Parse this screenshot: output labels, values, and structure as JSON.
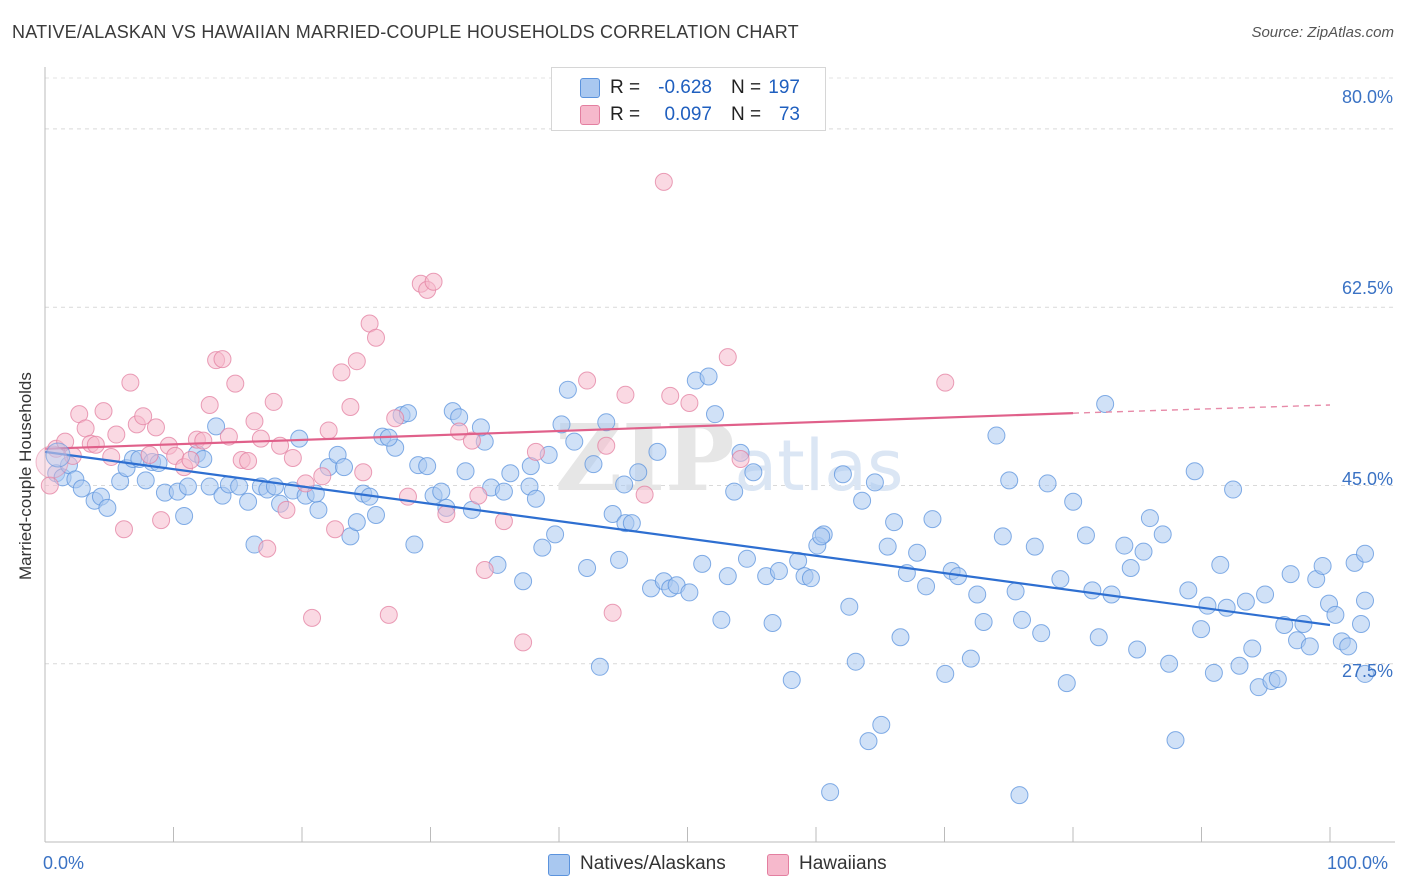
{
  "title": "NATIVE/ALASKAN VS HAWAIIAN MARRIED-COUPLE HOUSEHOLDS CORRELATION CHART",
  "source": "Source: ZipAtlas.com",
  "watermark": "ZIPatlas",
  "legend_top": {
    "rows": [
      {
        "r_label": "R =",
        "r_value": "-0.628",
        "n_label": "N =",
        "n_value": "197",
        "color": "#a9c8f0"
      },
      {
        "r_label": "R =",
        "r_value": "0.097",
        "n_label": "N =",
        "n_value": "73",
        "color": "#f6b9cc"
      }
    ]
  },
  "chart_data": {
    "type": "scatter",
    "title": "NATIVE/ALASKAN VS HAWAIIAN MARRIED-COUPLE HOUSEHOLDS CORRELATION CHART",
    "xlabel": "",
    "ylabel": "Married-couple Households",
    "xlim": [
      0,
      100
    ],
    "ylim": [
      10,
      85
    ],
    "x_tick_labels": [
      "0.0%",
      "100.0%"
    ],
    "y_ticks": [
      27.5,
      45.0,
      62.5,
      80.0
    ],
    "y_tick_labels": [
      "27.5%",
      "45.0%",
      "62.5%",
      "80.0%"
    ],
    "grid": true,
    "legend_position": "bottom",
    "series": [
      {
        "name": "Natives/Alaskans",
        "color": "#5b93dd",
        "fill": "#a9c8f0",
        "trend": {
          "x0": 0,
          "y0": 48.3,
          "x1": 100,
          "y1": 31.3
        },
        "points": [
          [
            0.5,
            46.2
          ],
          [
            1,
            45.8
          ],
          [
            1.5,
            47
          ],
          [
            2,
            45.6
          ],
          [
            2.5,
            44.7
          ],
          [
            3.5,
            43.5
          ],
          [
            4,
            43.9
          ],
          [
            4.5,
            42.8
          ],
          [
            5.5,
            45.4
          ],
          [
            6,
            46.7
          ],
          [
            6.5,
            47.6
          ],
          [
            7,
            47.6
          ],
          [
            7.5,
            45.5
          ],
          [
            8,
            47.3
          ],
          [
            8.5,
            47.2
          ],
          [
            9,
            44.3
          ],
          [
            10,
            44.4
          ],
          [
            10.5,
            42
          ],
          [
            10.8,
            44.9
          ],
          [
            11.5,
            48.1
          ],
          [
            12,
            47.6
          ],
          [
            12.5,
            44.9
          ],
          [
            13,
            50.8
          ],
          [
            13.5,
            44
          ],
          [
            14,
            45.1
          ],
          [
            14.8,
            44.9
          ],
          [
            15.5,
            43.4
          ],
          [
            16,
            39.2
          ],
          [
            16.5,
            44.9
          ],
          [
            17,
            44.6
          ],
          [
            17.6,
            44.9
          ],
          [
            18,
            43.2
          ],
          [
            19,
            44.5
          ],
          [
            19.5,
            49.6
          ],
          [
            20,
            44
          ],
          [
            21,
            42.6
          ],
          [
            21.8,
            46.8
          ],
          [
            22.5,
            48
          ],
          [
            23,
            46.8
          ],
          [
            23.5,
            40
          ],
          [
            24,
            41.4
          ],
          [
            24.5,
            44.2
          ],
          [
            25,
            43.9
          ],
          [
            25.5,
            42.1
          ],
          [
            26,
            49.8
          ],
          [
            27,
            48.7
          ],
          [
            27.5,
            51.9
          ],
          [
            28,
            52.1
          ],
          [
            28.5,
            39.2
          ],
          [
            28.8,
            47
          ],
          [
            29.5,
            46.9
          ],
          [
            30,
            44
          ],
          [
            30.6,
            44.4
          ],
          [
            31,
            42.8
          ],
          [
            31.5,
            52.3
          ],
          [
            32,
            51.7
          ],
          [
            32.5,
            46.4
          ],
          [
            33,
            42.6
          ],
          [
            34,
            49.3
          ],
          [
            34.5,
            44.8
          ],
          [
            35,
            37.2
          ],
          [
            35.5,
            44.4
          ],
          [
            36,
            46.2
          ],
          [
            37,
            35.6
          ],
          [
            37.5,
            44.9
          ],
          [
            38,
            43.7
          ],
          [
            38.5,
            38.9
          ],
          [
            39,
            48
          ],
          [
            39.5,
            40.2
          ],
          [
            40,
            51
          ],
          [
            40.5,
            54.4
          ],
          [
            41,
            49.3
          ],
          [
            42,
            36.9
          ],
          [
            42.5,
            47.1
          ],
          [
            43,
            27.2
          ],
          [
            43.5,
            51.2
          ],
          [
            44,
            42.2
          ],
          [
            44.5,
            37.7
          ],
          [
            45,
            41.3
          ],
          [
            45.5,
            41.3
          ],
          [
            46,
            46.3
          ],
          [
            47,
            34.9
          ],
          [
            47.5,
            48.3
          ],
          [
            48,
            35.6
          ],
          [
            48.5,
            34.9
          ],
          [
            49,
            35.2
          ],
          [
            50,
            34.5
          ],
          [
            50.5,
            55.3
          ],
          [
            51,
            37.3
          ],
          [
            51.5,
            55.7
          ],
          [
            52,
            52
          ],
          [
            52.5,
            31.8
          ],
          [
            53,
            36.1
          ],
          [
            53.5,
            44.4
          ],
          [
            54,
            48.2
          ],
          [
            54.5,
            37.8
          ],
          [
            55,
            46.3
          ],
          [
            56,
            36.1
          ],
          [
            56.5,
            31.5
          ],
          [
            57,
            36.6
          ],
          [
            58,
            25.9
          ],
          [
            58.5,
            37.6
          ],
          [
            59,
            36.1
          ],
          [
            59.5,
            35.9
          ],
          [
            60,
            39.1
          ],
          [
            60.5,
            40.2
          ],
          [
            61,
            14.9
          ],
          [
            62,
            46.1
          ],
          [
            62.5,
            33.1
          ],
          [
            63,
            27.7
          ],
          [
            63.5,
            43.5
          ],
          [
            64,
            19.9
          ],
          [
            64.5,
            45.3
          ],
          [
            65,
            21.5
          ],
          [
            65.5,
            39
          ],
          [
            66,
            41.4
          ],
          [
            66.5,
            30.1
          ],
          [
            67,
            36.4
          ],
          [
            67.8,
            38.4
          ],
          [
            68.5,
            35.1
          ],
          [
            69,
            41.7
          ],
          [
            70,
            26.5
          ],
          [
            70.5,
            36.6
          ],
          [
            71,
            36.1
          ],
          [
            72,
            28
          ],
          [
            72.5,
            34.3
          ],
          [
            73,
            31.6
          ],
          [
            74,
            49.9
          ],
          [
            74.5,
            40
          ],
          [
            75,
            45.5
          ],
          [
            75.5,
            34.6
          ],
          [
            76,
            31.8
          ],
          [
            77,
            39
          ],
          [
            77.5,
            30.5
          ],
          [
            78,
            45.2
          ],
          [
            79,
            35.8
          ],
          [
            79.5,
            25.6
          ],
          [
            80,
            43.4
          ],
          [
            81,
            40.1
          ],
          [
            81.5,
            34.7
          ],
          [
            82,
            30.1
          ],
          [
            82.5,
            53
          ],
          [
            83,
            34.3
          ],
          [
            84,
            39.1
          ],
          [
            84.5,
            36.9
          ],
          [
            85,
            28.9
          ],
          [
            85.5,
            38.5
          ],
          [
            86,
            41.8
          ],
          [
            87,
            40.2
          ],
          [
            87.5,
            27.5
          ],
          [
            88,
            20
          ],
          [
            89,
            34.7
          ],
          [
            89.5,
            46.4
          ],
          [
            90,
            30.9
          ],
          [
            90.5,
            33.2
          ],
          [
            91,
            26.6
          ],
          [
            91.5,
            37.2
          ],
          [
            92,
            33
          ],
          [
            92.5,
            44.6
          ],
          [
            93,
            27.3
          ],
          [
            93.5,
            33.6
          ],
          [
            94,
            29
          ],
          [
            94.5,
            25.2
          ],
          [
            95,
            34.3
          ],
          [
            95.5,
            25.8
          ],
          [
            96,
            26
          ],
          [
            96.5,
            31.3
          ],
          [
            97,
            36.3
          ],
          [
            97.5,
            29.8
          ],
          [
            98,
            31.4
          ],
          [
            98.5,
            29.2
          ],
          [
            99,
            35.8
          ],
          [
            99.5,
            37.1
          ],
          [
            100,
            33.4
          ],
          [
            100.5,
            32.3
          ],
          [
            101,
            29.7
          ],
          [
            101.5,
            29.2
          ],
          [
            102,
            37.4
          ],
          [
            102.5,
            31.4
          ],
          [
            103,
            33.7
          ],
          [
            103.5,
            38.3
          ],
          [
            104,
            26.5
          ],
          [
            75.8,
            14.6
          ],
          [
            60.3,
            40
          ],
          [
            44.9,
            45.1
          ],
          [
            37.6,
            46.9
          ],
          [
            33.7,
            50.7
          ],
          [
            26.5,
            49.7
          ],
          [
            20.8,
            44.2
          ]
        ]
      },
      {
        "name": "Hawaiians",
        "color": "#e37fa0",
        "fill": "#f6b9cc",
        "trend": {
          "x0": 0,
          "y0": 48.6,
          "x1": 80,
          "y1": 52.1
        },
        "trend_dashed": {
          "x0": 80,
          "y0": 52.1,
          "x1": 100,
          "y1": 52.9
        },
        "points": [
          [
            0,
            45
          ],
          [
            0.5,
            48.6
          ],
          [
            1.2,
            49.3
          ],
          [
            1.8,
            47.9
          ],
          [
            2.3,
            52
          ],
          [
            2.8,
            50.6
          ],
          [
            3.2,
            49.1
          ],
          [
            3.6,
            49
          ],
          [
            4.2,
            52.3
          ],
          [
            4.8,
            47.8
          ],
          [
            5.2,
            50
          ],
          [
            5.8,
            40.7
          ],
          [
            6.3,
            55.1
          ],
          [
            6.8,
            51
          ],
          [
            7.3,
            51.8
          ],
          [
            7.8,
            48
          ],
          [
            8.3,
            50.7
          ],
          [
            8.7,
            41.6
          ],
          [
            9.3,
            48.9
          ],
          [
            9.8,
            47.9
          ],
          [
            10.5,
            46.8
          ],
          [
            11,
            47.5
          ],
          [
            11.5,
            49.5
          ],
          [
            12,
            49.4
          ],
          [
            12.5,
            52.9
          ],
          [
            13,
            57.3
          ],
          [
            13.5,
            57.4
          ],
          [
            14,
            49.8
          ],
          [
            14.5,
            55
          ],
          [
            15,
            47.5
          ],
          [
            15.5,
            47.4
          ],
          [
            16,
            51.3
          ],
          [
            16.5,
            49.6
          ],
          [
            17,
            38.8
          ],
          [
            17.5,
            53.2
          ],
          [
            18,
            48.9
          ],
          [
            18.5,
            42.6
          ],
          [
            19,
            47.7
          ],
          [
            20,
            45.2
          ],
          [
            20.5,
            32
          ],
          [
            21.3,
            45.9
          ],
          [
            21.8,
            50.4
          ],
          [
            22.3,
            40.7
          ],
          [
            22.8,
            56.1
          ],
          [
            23.5,
            52.7
          ],
          [
            24,
            57.2
          ],
          [
            24.5,
            46.3
          ],
          [
            25,
            60.9
          ],
          [
            25.5,
            59.5
          ],
          [
            26.5,
            32.3
          ],
          [
            27,
            51.6
          ],
          [
            28,
            43.9
          ],
          [
            29,
            64.8
          ],
          [
            29.5,
            64.2
          ],
          [
            30,
            65
          ],
          [
            31,
            42.2
          ],
          [
            32,
            50.3
          ],
          [
            33,
            49.4
          ],
          [
            33.5,
            44
          ],
          [
            34,
            36.7
          ],
          [
            35.5,
            41.5
          ],
          [
            37,
            29.6
          ],
          [
            38,
            48.3
          ],
          [
            42,
            55.3
          ],
          [
            43.5,
            48.9
          ],
          [
            44,
            32.5
          ],
          [
            45,
            53.9
          ],
          [
            46.5,
            44.1
          ],
          [
            48,
            74.8
          ],
          [
            48.5,
            53.8
          ],
          [
            50,
            53.1
          ],
          [
            53,
            57.6
          ],
          [
            54,
            47.6
          ],
          [
            70,
            55.1
          ]
        ]
      }
    ]
  }
}
